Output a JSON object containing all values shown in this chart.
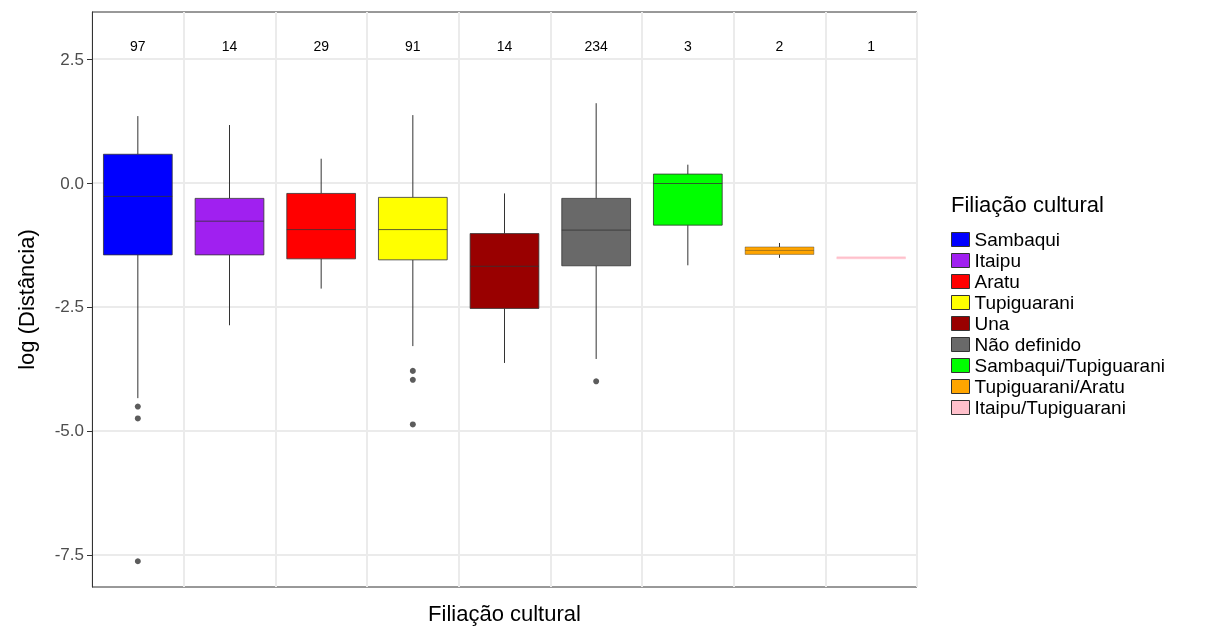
{
  "chart_data": {
    "type": "box",
    "xlabel": "Filiação cultural",
    "ylabel": "log (Distância)",
    "legend_title": "Filiação cultural",
    "legend": "right",
    "grid": true,
    "categories": [
      null,
      null,
      null,
      null,
      null,
      null,
      null,
      null,
      null
    ],
    "ylim": [
      -8.15,
      3.45
    ],
    "yticks": [
      -7.5,
      {
        "value": -5,
        "label": "-5.0"
      },
      -2.5,
      {
        "value": 0,
        "label": "0.0"
      },
      2.5
    ],
    "series": [
      {
        "name": "Sambaqui",
        "color": "#0000ff",
        "boxes": [
          {
            "low": -4.34,
            "q1": -1.45,
            "median": -0.27,
            "q3": 0.58,
            "high": 1.35,
            "outliers": [
              -4.51,
              -4.75,
              -7.63
            ]
          },
          null,
          null,
          null,
          null,
          null,
          null,
          null,
          null
        ]
      },
      {
        "name": "Itaipu",
        "color": "#a020f0",
        "boxes": [
          null,
          {
            "low": -2.87,
            "q1": -1.45,
            "median": -0.77,
            "q3": -0.31,
            "high": 1.17
          },
          null,
          null,
          null,
          null,
          null,
          null,
          null
        ]
      },
      {
        "name": "Aratu",
        "color": "#ff0000",
        "boxes": [
          null,
          null,
          {
            "low": -2.13,
            "q1": -1.53,
            "median": -0.94,
            "q3": -0.21,
            "high": 0.49
          },
          null,
          null,
          null,
          null,
          null,
          null
        ]
      },
      {
        "name": "Tupiguarani",
        "color": "#ffff00",
        "boxes": [
          null,
          null,
          null,
          {
            "low": -3.29,
            "q1": -1.55,
            "median": -0.94,
            "q3": -0.29,
            "high": 1.37,
            "outliers": [
              -3.79,
              -3.97,
              -4.87
            ]
          },
          null,
          null,
          null,
          null,
          null
        ]
      },
      {
        "name": "Una",
        "color": "#990000",
        "boxes": [
          null,
          null,
          null,
          null,
          {
            "low": -3.63,
            "q1": -2.53,
            "median": -1.68,
            "q3": -1.02,
            "high": -0.21
          },
          null,
          null,
          null,
          null
        ]
      },
      {
        "name": "Não definido",
        "color": "#696969",
        "boxes": [
          null,
          null,
          null,
          null,
          null,
          {
            "low": -3.55,
            "q1": -1.67,
            "median": -0.95,
            "q3": -0.31,
            "high": 1.61,
            "outliers": [
              -4.0
            ]
          },
          null,
          null,
          null
        ]
      },
      {
        "name": "Sambaqui/Tupiguarani",
        "color": "#00ff00",
        "boxes": [
          null,
          null,
          null,
          null,
          null,
          null,
          {
            "low": -1.66,
            "q1": -0.85,
            "median": -0.01,
            "q3": 0.18,
            "high": 0.37
          },
          null,
          null
        ]
      },
      {
        "name": "Tupiguarani/Aratu",
        "color": "#ffa500",
        "boxes": [
          null,
          null,
          null,
          null,
          null,
          null,
          null,
          {
            "low": -1.51,
            "q1": -1.44,
            "median": -1.36,
            "q3": -1.29,
            "high": -1.21
          },
          null
        ]
      },
      {
        "name": "Itaipu/Tupiguarani",
        "color": "#ffc0cb",
        "boxes": [
          null,
          null,
          null,
          null,
          null,
          null,
          null,
          null,
          {
            "low": -1.51,
            "q1": -1.51,
            "median": -1.51,
            "q3": -1.51,
            "high": -1.51
          }
        ]
      }
    ],
    "annotations": [
      "97",
      "14",
      "29",
      "91",
      "14",
      "234",
      "3",
      "2",
      "1"
    ]
  }
}
